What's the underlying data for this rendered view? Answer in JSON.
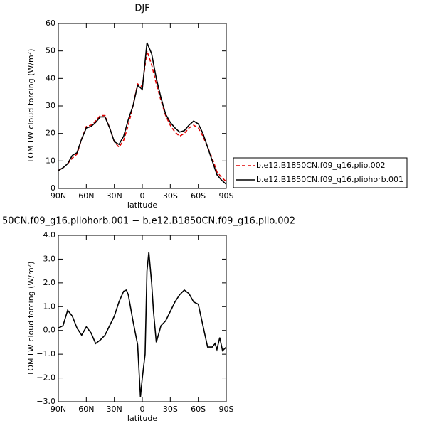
{
  "chart_data": [
    {
      "type": "line",
      "title": "DJF",
      "xlabel": "latitude",
      "ylabel": "TOM LW cloud forcing (W/m²)",
      "x": [
        90,
        85,
        80,
        75,
        70,
        65,
        60,
        55,
        50,
        45,
        40,
        35,
        30,
        25,
        20,
        15,
        10,
        5,
        0,
        -5,
        -10,
        -15,
        -20,
        -25,
        -30,
        -35,
        -40,
        -45,
        -50,
        -55,
        -60,
        -65,
        -70,
        -75,
        -80,
        -85,
        -90
      ],
      "series": [
        {
          "name": "b.e12.B1850CN.f09_g16.plio.002",
          "color": "#e00000",
          "style": "dashed",
          "values": [
            6.5,
            7.5,
            9,
            11,
            12.5,
            18,
            22.5,
            23,
            24.5,
            26.5,
            26.5,
            22,
            17,
            15,
            17.5,
            23,
            30,
            38,
            37,
            50,
            45,
            38,
            32,
            26.5,
            23,
            20.5,
            19,
            20,
            22,
            23,
            22,
            19,
            15,
            11,
            6,
            4,
            2.5
          ]
        },
        {
          "name": "b.e12.B1850CN.f09_g16.pliohorb.001",
          "color": "#000000",
          "style": "solid",
          "values": [
            6.5,
            7.5,
            9,
            12,
            13,
            18,
            22,
            22.5,
            24,
            26,
            26,
            22,
            17,
            16,
            19,
            25,
            30,
            37.5,
            36,
            53,
            49,
            40,
            33,
            27,
            24,
            22,
            20.5,
            21,
            23,
            24.5,
            23.5,
            20,
            15,
            10,
            5,
            3,
            1.5
          ]
        }
      ],
      "xlim": [
        90,
        -90
      ],
      "xticks": [
        {
          "value": 90,
          "label": "90N"
        },
        {
          "value": 60,
          "label": "60N"
        },
        {
          "value": 30,
          "label": "30N"
        },
        0,
        {
          "value": -30,
          "label": "30S"
        },
        {
          "value": -60,
          "label": "60S"
        },
        {
          "value": -90,
          "label": "90S"
        }
      ],
      "ylim": [
        0,
        60
      ],
      "yticks": [
        0,
        10,
        20,
        30,
        40,
        50,
        60
      ],
      "legend": "right"
    },
    {
      "type": "line",
      "title": "50CN.f09_g16.pliohorb.001 − b.e12.B1850CN.f09_g16.plio.002",
      "xlabel": "latitude",
      "ylabel": "TOM LW cloud forcing (W/m²)",
      "x": [
        90,
        85,
        80,
        75,
        70,
        65,
        60,
        55,
        50,
        45,
        40,
        35,
        30,
        25,
        20,
        17,
        15,
        10,
        5,
        2,
        0,
        -3,
        -5,
        -7,
        -10,
        -12,
        -15,
        -20,
        -25,
        -30,
        -35,
        -40,
        -45,
        -50,
        -55,
        -60,
        -65,
        -70,
        -75,
        -78,
        -80,
        -83,
        -86,
        -90
      ],
      "series": [
        {
          "color": "#000000",
          "style": "solid",
          "values": [
            0.1,
            0.2,
            0.85,
            0.6,
            0.1,
            -0.2,
            0.15,
            -0.1,
            -0.55,
            -0.4,
            -0.2,
            0.2,
            0.6,
            1.2,
            1.65,
            1.7,
            1.5,
            0.4,
            -0.6,
            -2.8,
            -2.0,
            -1.0,
            2.5,
            3.3,
            2.0,
            0.8,
            -0.5,
            0.2,
            0.4,
            0.8,
            1.2,
            1.5,
            1.7,
            1.55,
            1.2,
            1.1,
            0.2,
            -0.7,
            -0.7,
            -0.55,
            -0.8,
            -0.3,
            -0.85,
            -0.7
          ]
        }
      ],
      "xlim": [
        90,
        -90
      ],
      "xticks": [
        {
          "value": 90,
          "label": "90N"
        },
        {
          "value": 60,
          "label": "60N"
        },
        {
          "value": 30,
          "label": "30N"
        },
        0,
        {
          "value": -30,
          "label": "30S"
        },
        {
          "value": -60,
          "label": "60S"
        },
        {
          "value": -90,
          "label": "90S"
        }
      ],
      "ylim": [
        -3,
        4
      ],
      "yticks": [
        {
          "value": -3,
          "label": "−3.0"
        },
        {
          "value": -2,
          "label": "−2.0"
        },
        {
          "value": -1,
          "label": "−1.0"
        },
        {
          "value": 0,
          "label": "0.0"
        },
        {
          "value": 1,
          "label": "1.0"
        },
        {
          "value": 2,
          "label": "2.0"
        },
        {
          "value": 3,
          "label": "3.0"
        },
        {
          "value": 4,
          "label": "4.0"
        }
      ]
    }
  ]
}
